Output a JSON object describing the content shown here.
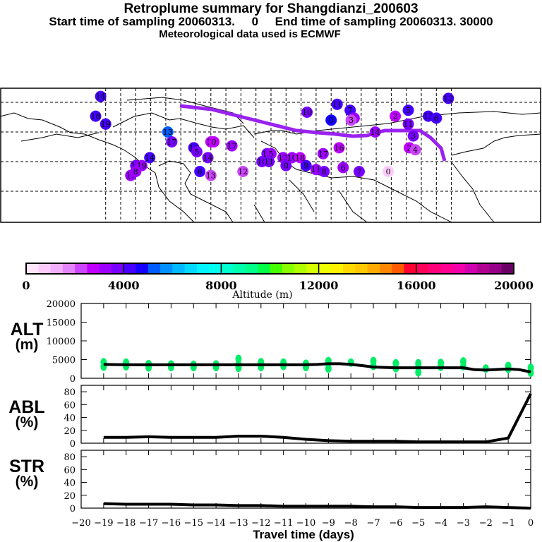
{
  "header": {
    "title": "Retroplume summary for Shangdianzi_200603",
    "subtitle": "Start time of sampling 20060313.     0     End time of sampling 20060313. 30000",
    "met_note": "Meteorological data used is ECMWF"
  },
  "map": {
    "description": "Retroplume cluster centroids over Northern Hemisphere map (numbers = days before release)",
    "clusters": [
      {
        "label": "14",
        "lon": -170,
        "lat": 78,
        "alt": 4400
      },
      {
        "label": "18",
        "lon": -175,
        "lat": 68,
        "alt": 4200
      },
      {
        "label": "13",
        "lon": -103,
        "lat": 60,
        "alt": 5200
      },
      {
        "label": "17",
        "lon": -99,
        "lat": 55,
        "alt": 3600
      },
      {
        "label": "14",
        "lon": -121,
        "lat": 47,
        "alt": 4100
      },
      {
        "label": "16",
        "lon": -135,
        "lat": 43,
        "alt": 3500
      },
      {
        "label": "19",
        "lon": -129,
        "lat": 43,
        "alt": 3300
      },
      {
        "label": "17",
        "lon": -140,
        "lat": 38,
        "alt": 3200
      },
      {
        "label": "8",
        "lon": -135,
        "lat": 40,
        "alt": 3300
      },
      {
        "label": "16",
        "lon": -77,
        "lat": 52,
        "alt": 4000
      },
      {
        "label": "5",
        "lon": -74,
        "lat": 50,
        "alt": 3500
      },
      {
        "label": "12",
        "lon": -60,
        "lat": 55,
        "alt": 2600
      },
      {
        "label": "0",
        "lon": -57,
        "lat": 55,
        "alt": 2500
      },
      {
        "label": "14",
        "lon": -63,
        "lat": 47,
        "alt": 3500
      },
      {
        "label": "6",
        "lon": -71,
        "lat": 40,
        "alt": 4200
      },
      {
        "label": "13",
        "lon": -60,
        "lat": 38,
        "alt": 2200
      },
      {
        "label": "17",
        "lon": -39,
        "lat": 53,
        "alt": 3100
      },
      {
        "label": "12",
        "lon": -28,
        "lat": 40,
        "alt": 2200
      },
      {
        "label": "16",
        "lon": -4,
        "lat": 49,
        "alt": 3600
      },
      {
        "label": "5",
        "lon": 0,
        "lat": 49,
        "alt": 3400
      },
      {
        "label": "10",
        "lon": -9,
        "lat": 45,
        "alt": 3800
      },
      {
        "label": "11",
        "lon": -2,
        "lat": 45,
        "alt": 3500
      },
      {
        "label": "13",
        "lon": 12,
        "lat": 47,
        "alt": 3200
      },
      {
        "label": "10",
        "lon": 21,
        "lat": 47,
        "alt": 3000
      },
      {
        "label": "18",
        "lon": 29,
        "lat": 47,
        "alt": 2600
      },
      {
        "label": "9",
        "lon": 35,
        "lat": 43,
        "alt": 4200
      },
      {
        "label": "0",
        "lon": 15,
        "lat": 43,
        "alt": 3800
      },
      {
        "label": "11",
        "lon": 66,
        "lat": 74,
        "alt": 4300
      },
      {
        "label": "10",
        "lon": 36,
        "lat": 70,
        "alt": 3900
      },
      {
        "label": "0",
        "lon": 60,
        "lat": 66,
        "alt": 4500
      },
      {
        "label": "7",
        "lon": 79,
        "lat": 71,
        "alt": 4400
      },
      {
        "label": "8",
        "lon": 83,
        "lat": 67,
        "alt": 3300
      },
      {
        "label": "3",
        "lon": 80,
        "lat": 66,
        "alt": 2400
      },
      {
        "label": "17",
        "lon": 52,
        "lat": 49,
        "alt": 3100
      },
      {
        "label": "16",
        "lon": 68,
        "lat": 52,
        "alt": 2700
      },
      {
        "label": "11",
        "lon": 45,
        "lat": 41,
        "alt": 3200
      },
      {
        "label": "8",
        "lon": 53,
        "lat": 40,
        "alt": 3600
      },
      {
        "label": "6",
        "lon": 72,
        "lat": 42,
        "alt": 3000
      },
      {
        "label": "7",
        "lon": 88,
        "lat": 40,
        "alt": 3800
      },
      {
        "label": "14",
        "lon": 104,
        "lat": 60,
        "alt": 3300
      },
      {
        "label": "2",
        "lon": 124,
        "lat": 68,
        "alt": 2600
      },
      {
        "label": "5",
        "lon": 137,
        "lat": 71,
        "alt": 4200
      },
      {
        "label": "11",
        "lon": 137,
        "lat": 64,
        "alt": 3800
      },
      {
        "label": "3",
        "lon": 142,
        "lat": 58,
        "alt": 3800
      },
      {
        "label": "2",
        "lon": 138,
        "lat": 52,
        "alt": 2500
      },
      {
        "label": "4",
        "lon": 144,
        "lat": 51,
        "alt": 2000
      },
      {
        "label": "13",
        "lon": 157,
        "lat": 68,
        "alt": 4000
      },
      {
        "label": "6",
        "lon": 165,
        "lat": 67,
        "alt": 4200
      },
      {
        "label": "12",
        "lon": 177,
        "lat": 77,
        "alt": 4300
      },
      {
        "label": "19",
        "lon": -165,
        "lat": 64,
        "alt": 4200
      },
      {
        "label": "0",
        "lon": 117,
        "lat": 40,
        "alt": 800
      }
    ]
  },
  "colorbar": {
    "ticks": [
      "0",
      "4000",
      "8000",
      "12000",
      "16000",
      "20000"
    ],
    "label": "Altitude (m)",
    "min": 0,
    "max": 20000,
    "colors": [
      "#ffe4fb",
      "#fccbfa",
      "#f3aef9",
      "#e384fa",
      "#cc44fb",
      "#c000ff",
      "#9c00ff",
      "#7800ff",
      "#4500ff",
      "#1500ff",
      "#005cff",
      "#0090ff",
      "#00b8ff",
      "#00d8ff",
      "#00f4ff",
      "#00ffee",
      "#00ffd0",
      "#00ffaa",
      "#00ff88",
      "#00ff44",
      "#44ff00",
      "#88ff00",
      "#b0ff00",
      "#d8ff00",
      "#eeff00",
      "#fff200",
      "#ffd800",
      "#ffc800",
      "#ffaa00",
      "#ff8800",
      "#ff5a00",
      "#ff0030",
      "#ff0058",
      "#ff0078",
      "#ff0090",
      "#f200a8",
      "#d000b0",
      "#b00090",
      "#960088",
      "#6a0066"
    ]
  },
  "chart_data": [
    {
      "type": "scatter+line",
      "panel": "ALT",
      "ylabel_line1": "ALT",
      "ylabel_line2": "(m)",
      "ylim": [
        0,
        20000
      ],
      "yticks": [
        "0",
        "5000",
        "10000",
        "15000",
        "20000"
      ],
      "xlim": [
        -20,
        0
      ],
      "line": {
        "x": [
          -19,
          -18,
          -17,
          -16,
          -15,
          -14,
          -13,
          -12,
          -11,
          -10,
          -9.5,
          -9,
          -8.5,
          -8,
          -7.5,
          -7,
          -6,
          -5,
          -4,
          -3,
          -2.5,
          -2,
          -1,
          -0.5,
          0
        ],
        "y": [
          3700,
          3600,
          3600,
          3600,
          3600,
          3600,
          3600,
          3600,
          3600,
          3600,
          3700,
          3900,
          3900,
          3700,
          3400,
          3000,
          2800,
          2800,
          2800,
          2800,
          2300,
          2200,
          2500,
          2300,
          1700
        ]
      },
      "point_color": "#00ee66",
      "points": {
        "x": [
          -19,
          -19,
          -18,
          -18,
          -17,
          -17,
          -16,
          -16,
          -15,
          -15,
          -14,
          -14,
          -13,
          -13,
          -13,
          -12,
          -12,
          -11,
          -11,
          -10,
          -10,
          -9,
          -9,
          -9,
          -8,
          -7,
          -7,
          -6,
          -6,
          -5,
          -5,
          -5,
          -4,
          -4,
          -3,
          -3,
          -2,
          -1,
          -1,
          0,
          0
        ],
        "y": [
          4300,
          3100,
          4200,
          3200,
          3800,
          2900,
          3700,
          3000,
          3600,
          3000,
          3700,
          3000,
          5200,
          3600,
          2800,
          4300,
          3000,
          4200,
          3300,
          3900,
          3000,
          4600,
          3900,
          2600,
          4200,
          4600,
          3300,
          4000,
          2700,
          4000,
          3000,
          1600,
          4100,
          3100,
          4500,
          3200,
          2600,
          3300,
          2500,
          2800,
          1500
        ]
      }
    },
    {
      "type": "line",
      "panel": "ABL",
      "ylabel_line1": "ABL",
      "ylabel_line2": "(%)",
      "ylim": [
        0,
        90
      ],
      "yticks": [
        "0",
        "20",
        "40",
        "60",
        "80"
      ],
      "xlim": [
        -20,
        0
      ],
      "x": [
        -19,
        -18,
        -17,
        -16,
        -15,
        -14,
        -13,
        -12,
        -11,
        -10,
        -9,
        -8,
        -7,
        -6,
        -5,
        -4,
        -3,
        -2,
        -1,
        0
      ],
      "y": [
        9,
        9,
        10,
        9,
        9,
        9,
        11,
        11,
        9,
        6,
        4,
        3,
        3,
        3,
        2,
        2,
        2,
        2,
        8,
        77
      ]
    },
    {
      "type": "line",
      "panel": "STR",
      "ylabel_line1": "STR",
      "ylabel_line2": "(%)",
      "ylim": [
        0,
        90
      ],
      "yticks": [
        "0",
        "20",
        "40",
        "60",
        "80"
      ],
      "xlim": [
        -20,
        0
      ],
      "xticks": [
        "-20",
        "-19",
        "-18",
        "-17",
        "-16",
        "-15",
        "-14",
        "-13",
        "-12",
        "-11",
        "-10",
        "-9",
        "-8",
        "-7",
        "-6",
        "-5",
        "-4",
        "-3",
        "-2",
        "-1",
        "0"
      ],
      "xlabel": "Travel time (days)",
      "x": [
        -19,
        -18,
        -17,
        -16,
        -15,
        -14,
        -13,
        -12,
        -11,
        -10,
        -9,
        -8,
        -7,
        -6,
        -5,
        -4,
        -3,
        -2,
        -1,
        0
      ],
      "y": [
        7,
        6,
        6,
        6,
        5,
        5,
        4,
        4,
        3,
        3,
        3,
        3,
        2,
        2,
        1,
        1,
        1,
        2,
        1,
        0
      ]
    }
  ]
}
